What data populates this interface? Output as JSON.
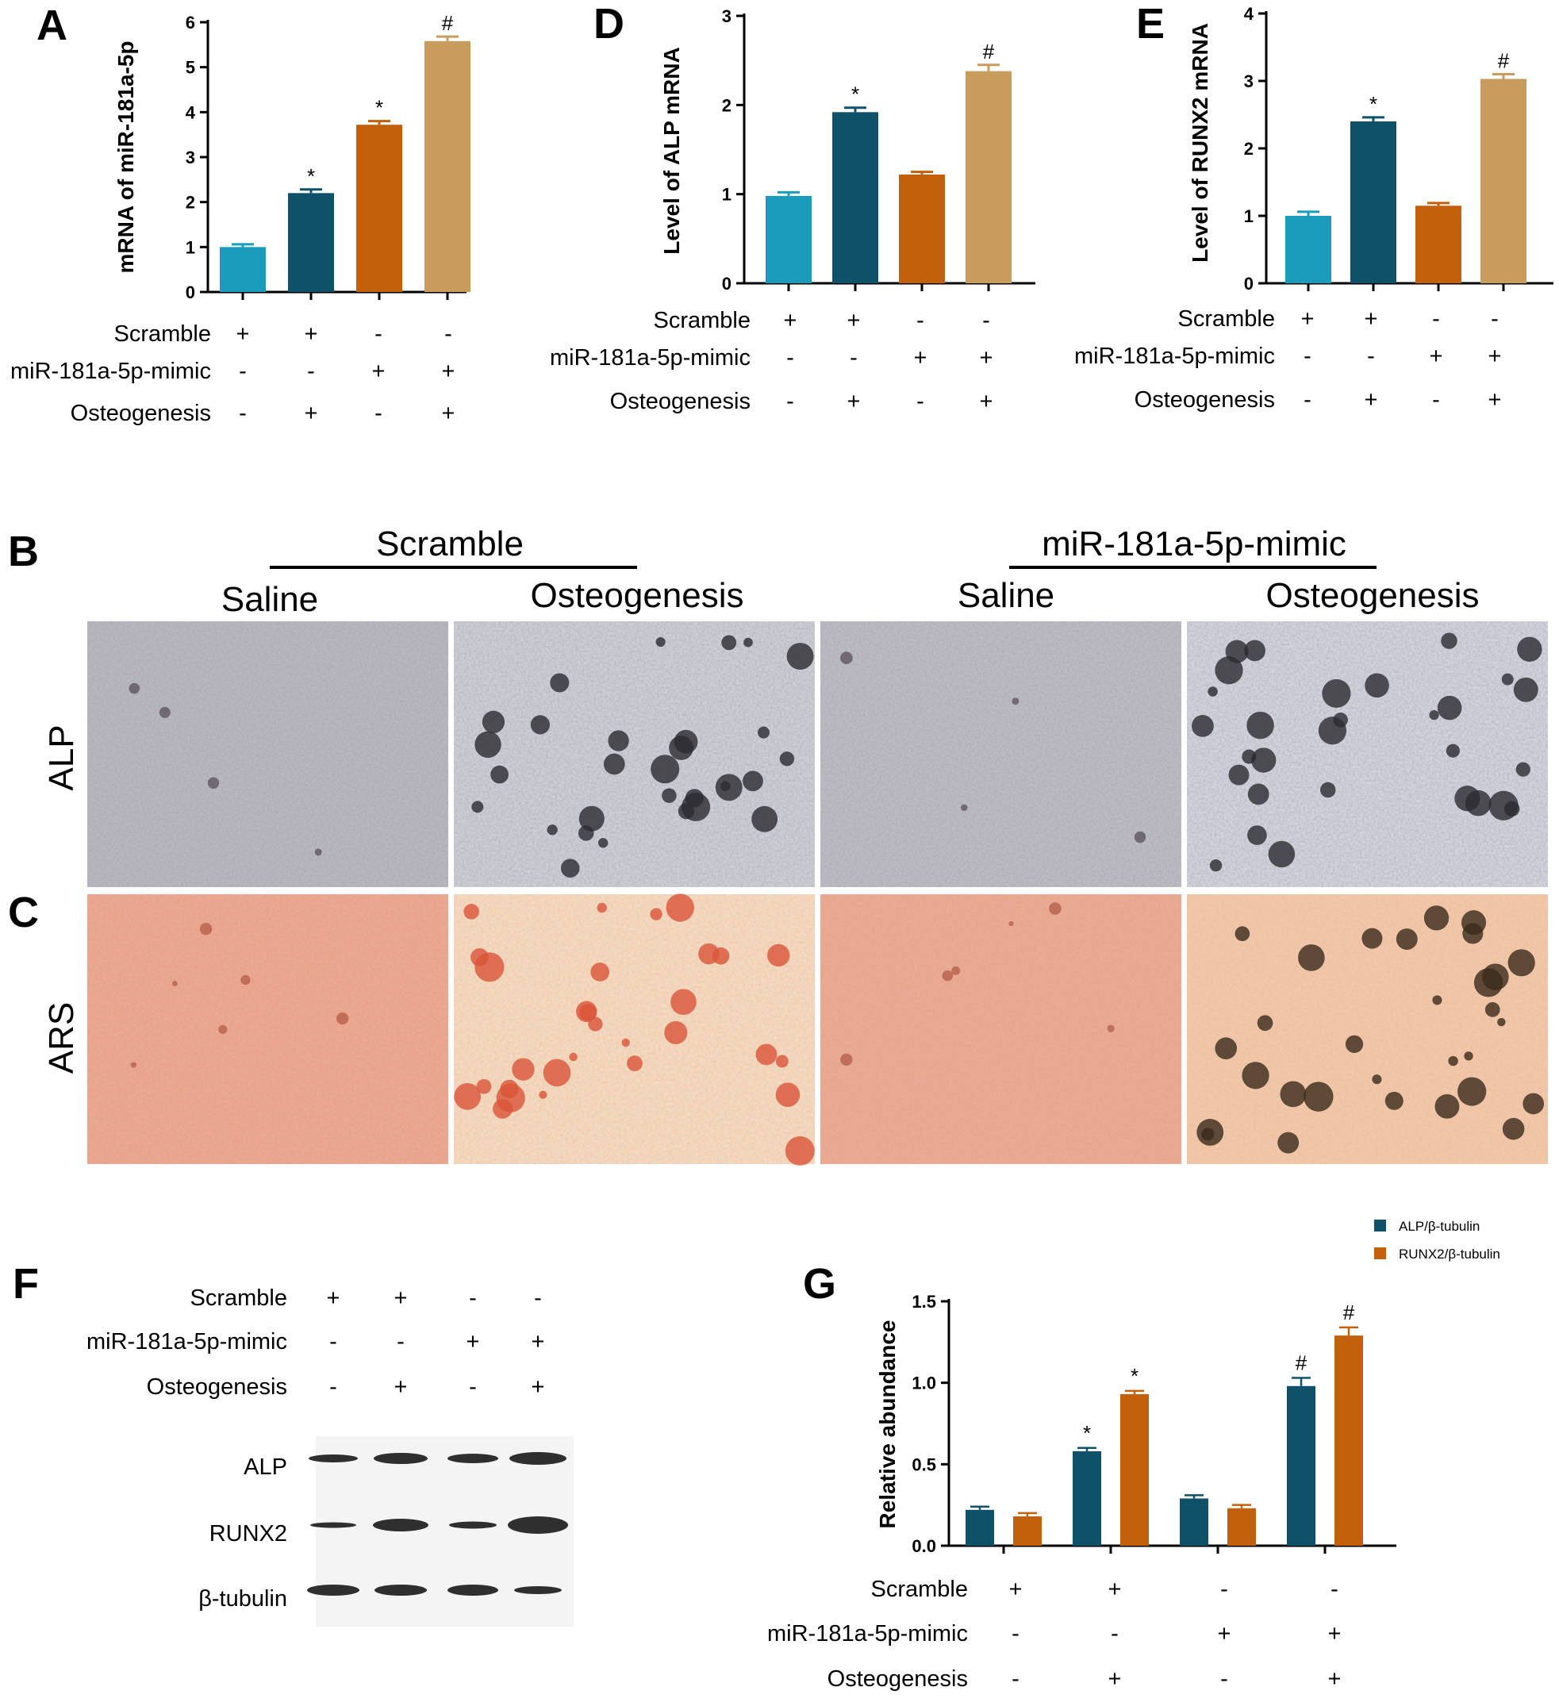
{
  "panels": {
    "A": "A",
    "B": "B",
    "C": "C",
    "D": "D",
    "E": "E",
    "F": "F",
    "G": "G"
  },
  "micro": {
    "groups": [
      "Scramble",
      "miR-181a-5p-mimic"
    ],
    "columns": [
      "Saline",
      "Osteogenesis",
      "Saline",
      "Osteogenesis"
    ],
    "rows": [
      "ALP",
      "ARS"
    ]
  },
  "blot": {
    "bands": [
      "ALP",
      "RUNX2",
      "β-tubulin"
    ]
  },
  "colors": {
    "teal_light": "#1a9cbb",
    "teal_dark": "#0f5168",
    "orange": "#c2600c",
    "tan": "#c89c5c",
    "alp_stain": "#9a9aa6",
    "ars_stain": "#e7977c"
  },
  "chart_data": [
    {
      "id": "A",
      "type": "bar",
      "ylabel": "mRNA of miR-181a-5p",
      "ylim": [
        0,
        6
      ],
      "yticks": [
        "0",
        "1",
        "2",
        "3",
        "4",
        "5",
        "6"
      ],
      "values": [
        1.0,
        2.2,
        3.72,
        5.58
      ],
      "errors": [
        0.06,
        0.08,
        0.08,
        0.1
      ],
      "bar_colors": [
        "#1a9cbb",
        "#0f5168",
        "#c2600c",
        "#c89c5c"
      ],
      "marks": [
        "",
        "*",
        "*",
        "#"
      ],
      "conditions": [
        {
          "label": "Scramble",
          "signs": [
            "+",
            "+",
            "-",
            "-"
          ]
        },
        {
          "label": "miR-181a-5p-mimic",
          "signs": [
            "-",
            "-",
            "+",
            "+"
          ]
        },
        {
          "label": "Osteogenesis",
          "signs": [
            "-",
            "+",
            "-",
            "+"
          ]
        }
      ]
    },
    {
      "id": "D",
      "type": "bar",
      "ylabel": "Level of ALP mRNA",
      "ylim": [
        0,
        3
      ],
      "yticks": [
        "0",
        "1",
        "2",
        "3"
      ],
      "values": [
        0.98,
        1.92,
        1.22,
        2.38
      ],
      "errors": [
        0.04,
        0.05,
        0.03,
        0.07
      ],
      "bar_colors": [
        "#1a9cbb",
        "#0f5168",
        "#c2600c",
        "#c89c5c"
      ],
      "marks": [
        "",
        "*",
        "",
        "#"
      ],
      "conditions": [
        {
          "label": "Scramble",
          "signs": [
            "+",
            "+",
            "-",
            "-"
          ]
        },
        {
          "label": "miR-181a-5p-mimic",
          "signs": [
            "-",
            "-",
            "+",
            "+"
          ]
        },
        {
          "label": "Osteogenesis",
          "signs": [
            "-",
            "+",
            "-",
            "+"
          ]
        }
      ]
    },
    {
      "id": "E",
      "type": "bar",
      "ylabel": "Level of RUNX2 mRNA",
      "ylim": [
        0,
        4
      ],
      "yticks": [
        "0",
        "1",
        "2",
        "3",
        "4"
      ],
      "values": [
        1.0,
        2.4,
        1.15,
        3.03
      ],
      "errors": [
        0.06,
        0.06,
        0.04,
        0.07
      ],
      "bar_colors": [
        "#1a9cbb",
        "#0f5168",
        "#c2600c",
        "#c89c5c"
      ],
      "marks": [
        "",
        "*",
        "",
        "#"
      ],
      "conditions": [
        {
          "label": "Scramble",
          "signs": [
            "+",
            "+",
            "-",
            "-"
          ]
        },
        {
          "label": "miR-181a-5p-mimic",
          "signs": [
            "-",
            "-",
            "+",
            "+"
          ]
        },
        {
          "label": "Osteogenesis",
          "signs": [
            "-",
            "+",
            "-",
            "+"
          ]
        }
      ]
    },
    {
      "id": "F",
      "type": "table",
      "conditions": [
        {
          "label": "Scramble",
          "signs": [
            "+",
            "+",
            "-",
            "-"
          ]
        },
        {
          "label": "miR-181a-5p-mimic",
          "signs": [
            "-",
            "-",
            "+",
            "+"
          ]
        },
        {
          "label": "Osteogenesis",
          "signs": [
            "-",
            "+",
            "-",
            "+"
          ]
        }
      ]
    },
    {
      "id": "G",
      "type": "bar",
      "ylabel": "Relative abundance",
      "ylim": [
        0,
        1.5
      ],
      "yticks": [
        "0.0",
        "0.5",
        "1.0",
        "1.5"
      ],
      "legend_position": "top-right",
      "series": [
        {
          "name": "ALP/β-tubulin",
          "color": "#0f5168",
          "values": [
            0.22,
            0.58,
            0.29,
            0.98
          ],
          "errors": [
            0.02,
            0.02,
            0.02,
            0.05
          ],
          "marks": [
            "",
            "*",
            "",
            "#"
          ]
        },
        {
          "name": "RUNX2/β-tubulin",
          "color": "#c2600c",
          "values": [
            0.18,
            0.93,
            0.23,
            1.29
          ],
          "errors": [
            0.02,
            0.02,
            0.02,
            0.05
          ],
          "marks": [
            "",
            "*",
            "",
            "#"
          ]
        }
      ],
      "conditions": [
        {
          "label": "Scramble",
          "signs": [
            "+",
            "+",
            "-",
            "-"
          ]
        },
        {
          "label": "miR-181a-5p-mimic",
          "signs": [
            "-",
            "-",
            "+",
            "+"
          ]
        },
        {
          "label": "Osteogenesis",
          "signs": [
            "-",
            "+",
            "-",
            "+"
          ]
        }
      ]
    }
  ]
}
